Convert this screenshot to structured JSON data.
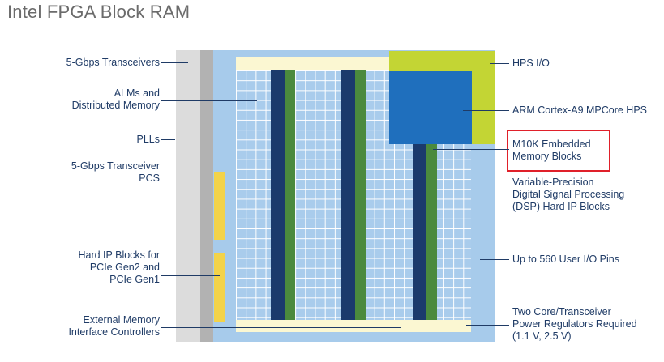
{
  "title": "Intel FPGA Block RAM",
  "labels_left": {
    "transceivers": "5-Gbps Transceivers",
    "alms_line1": "ALMs and",
    "alms_line2": "Distributed Memory",
    "plls": "PLLs",
    "pcs_line1": "5-Gbps Transceiver",
    "pcs_line2": "PCS",
    "hardip_line1": "Hard IP Blocks for",
    "hardip_line2": "PCIe Gen2 and",
    "hardip_line3": "PCIe Gen1",
    "emif_line1": "External Memory",
    "emif_line2": "Interface Controllers"
  },
  "labels_right": {
    "hps_io": "HPS I/O",
    "arm": "ARM Cortex-A9 MPCore HPS",
    "m10k_line1": "M10K Embedded",
    "m10k_line2": "Memory Blocks",
    "dsp_line1": "Variable-Precision",
    "dsp_line2": "Digital Signal Processing",
    "dsp_line3": "(DSP) Hard IP Blocks",
    "userio": "Up to 560 User I/O Pins",
    "reg_line1": "Two Core/Transceiver",
    "reg_line2": "Power Regulators Required",
    "reg_line3": "(1.1 V, 2.5 V)"
  },
  "colors": {
    "label_text": "#1f3b66",
    "transceiver_outer": "#dcdcdc",
    "transceiver_inner": "#b2b2b2",
    "io_ring": "#a7cbeb",
    "fabric_grid": "#a9ccec",
    "bus_bar": "#fbf7d2",
    "hps_io": "#c3d534",
    "arm_hps": "#1f6fbd",
    "m10k": "#1b3a6c",
    "dsp": "#4b8a3d",
    "hard_ip": "#f3d34a",
    "highlight": "#e0202a"
  }
}
